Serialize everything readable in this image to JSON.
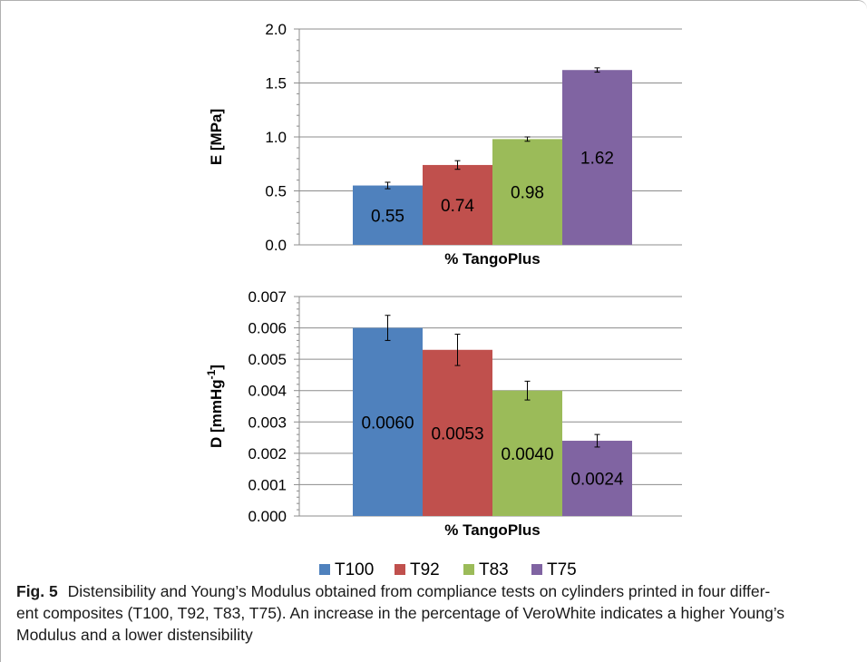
{
  "chart_data": [
    {
      "type": "bar",
      "categories": [
        "T100",
        "T92",
        "T83",
        "T75"
      ],
      "values": [
        0.55,
        0.74,
        0.98,
        1.62
      ],
      "errors": [
        0.03,
        0.04,
        0.02,
        0.02
      ],
      "data_labels": [
        "0.55",
        "0.74",
        "0.98",
        "1.62"
      ],
      "xlabel": "% TangoPlus",
      "ylabel": "E [MPa]",
      "ylim": [
        0,
        2.0
      ],
      "yticks": [
        "0.0",
        "0.5",
        "1.0",
        "1.5",
        "2.0"
      ],
      "grid": true
    },
    {
      "type": "bar",
      "categories": [
        "T100",
        "T92",
        "T83",
        "T75"
      ],
      "values": [
        0.006,
        0.0053,
        0.004,
        0.0024
      ],
      "errors": [
        0.0004,
        0.0005,
        0.0003,
        0.0002
      ],
      "data_labels": [
        "0.0060",
        "0.0053",
        "0.0040",
        "0.0024"
      ],
      "xlabel": "% TangoPlus",
      "ylabel_main": "D [mmHg",
      "ylabel_sup": "-1",
      "ylabel_end": "]",
      "ylim": [
        0,
        0.007
      ],
      "yticks": [
        "0.000",
        "0.001",
        "0.002",
        "0.003",
        "0.004",
        "0.005",
        "0.006",
        "0.007"
      ],
      "grid": true
    }
  ],
  "legend": {
    "placement": "bottom",
    "items": [
      {
        "label": "T100",
        "color": "#4f81bd"
      },
      {
        "label": "T92",
        "color": "#c0504d"
      },
      {
        "label": "T83",
        "color": "#9bbb59"
      },
      {
        "label": "T75",
        "color": "#8064a2"
      }
    ]
  },
  "caption": {
    "label": "Fig. 5",
    "lines": [
      "Distensibility and Young’s Modulus obtained from compliance tests on cylinders printed in four differ-",
      "ent composites (T100, T92, T83, T75). An increase in the percentage of VeroWhite indicates a higher Young’s",
      "Modulus and a lower distensibility"
    ]
  }
}
